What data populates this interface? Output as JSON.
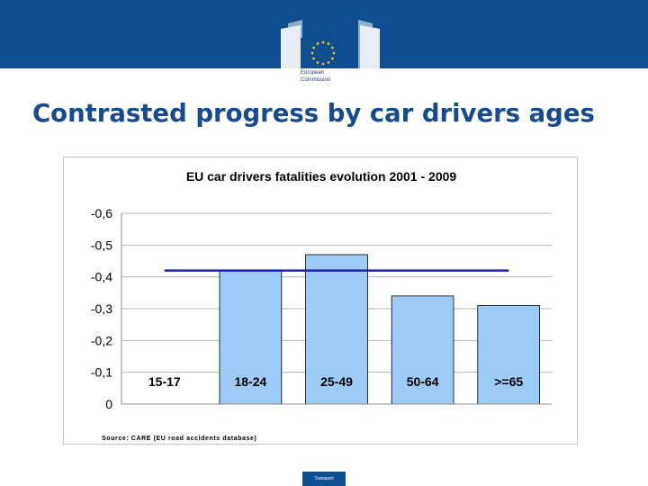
{
  "logo": {
    "icon": "european-commission-logo",
    "line1": "European",
    "line2": "Commission"
  },
  "slide": {
    "title": "Contrasted progress by car drivers ages",
    "footer": "Transport"
  },
  "chart_data": {
    "type": "bar",
    "title": "EU car drivers  fatalities  evolution 2001 - 2009",
    "source": "Source: CARE (EU road accidents database)",
    "categories": [
      "15-17",
      "18-24",
      "25-49",
      "50-64",
      ">=65"
    ],
    "values": [
      0,
      -0.42,
      -0.47,
      -0.34,
      -0.31
    ],
    "reference_line": -0.42,
    "ylim": [
      0,
      -0.6
    ],
    "yticks": [
      "-0,6",
      "-0,5",
      "-0,4",
      "-0,3",
      "-0,2",
      "-0,1",
      "0"
    ],
    "yticks_values": [
      -0.6,
      -0.5,
      -0.4,
      -0.3,
      -0.2,
      -0.1,
      0
    ],
    "grid": true,
    "bar_color": "#9ccbf7",
    "line_color": "#2323a6"
  }
}
